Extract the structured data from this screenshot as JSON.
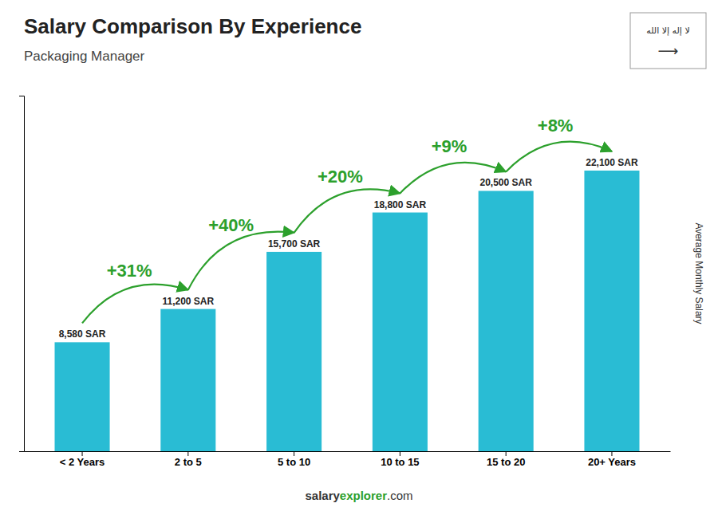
{
  "chart_data": {
    "type": "bar",
    "title": "Salary Comparison By Experience",
    "subtitle": "Packaging Manager",
    "categories": [
      "< 2 Years",
      "2 to 5",
      "5 to 10",
      "10 to 15",
      "15 to 20",
      "20+ Years"
    ],
    "values": [
      8580,
      11200,
      15700,
      18800,
      20500,
      22100
    ],
    "value_labels": [
      "8,580 SAR",
      "11,200 SAR",
      "15,700 SAR",
      "18,800 SAR",
      "20,500 SAR",
      "22,100 SAR"
    ],
    "data_labels": true,
    "color": "#29bcd4",
    "ylabel": "Average Monthly Salary",
    "ylim": [
      0,
      28000
    ],
    "tick_labels": "x",
    "grid": false,
    "annotations": [
      "+31%",
      "+40%",
      "+20%",
      "+9%",
      "+8%"
    ],
    "footer": [
      "salary",
      "explorer",
      ".com"
    ],
    "flag": [
      "لا إله إلا الله",
      "⟶"
    ]
  }
}
